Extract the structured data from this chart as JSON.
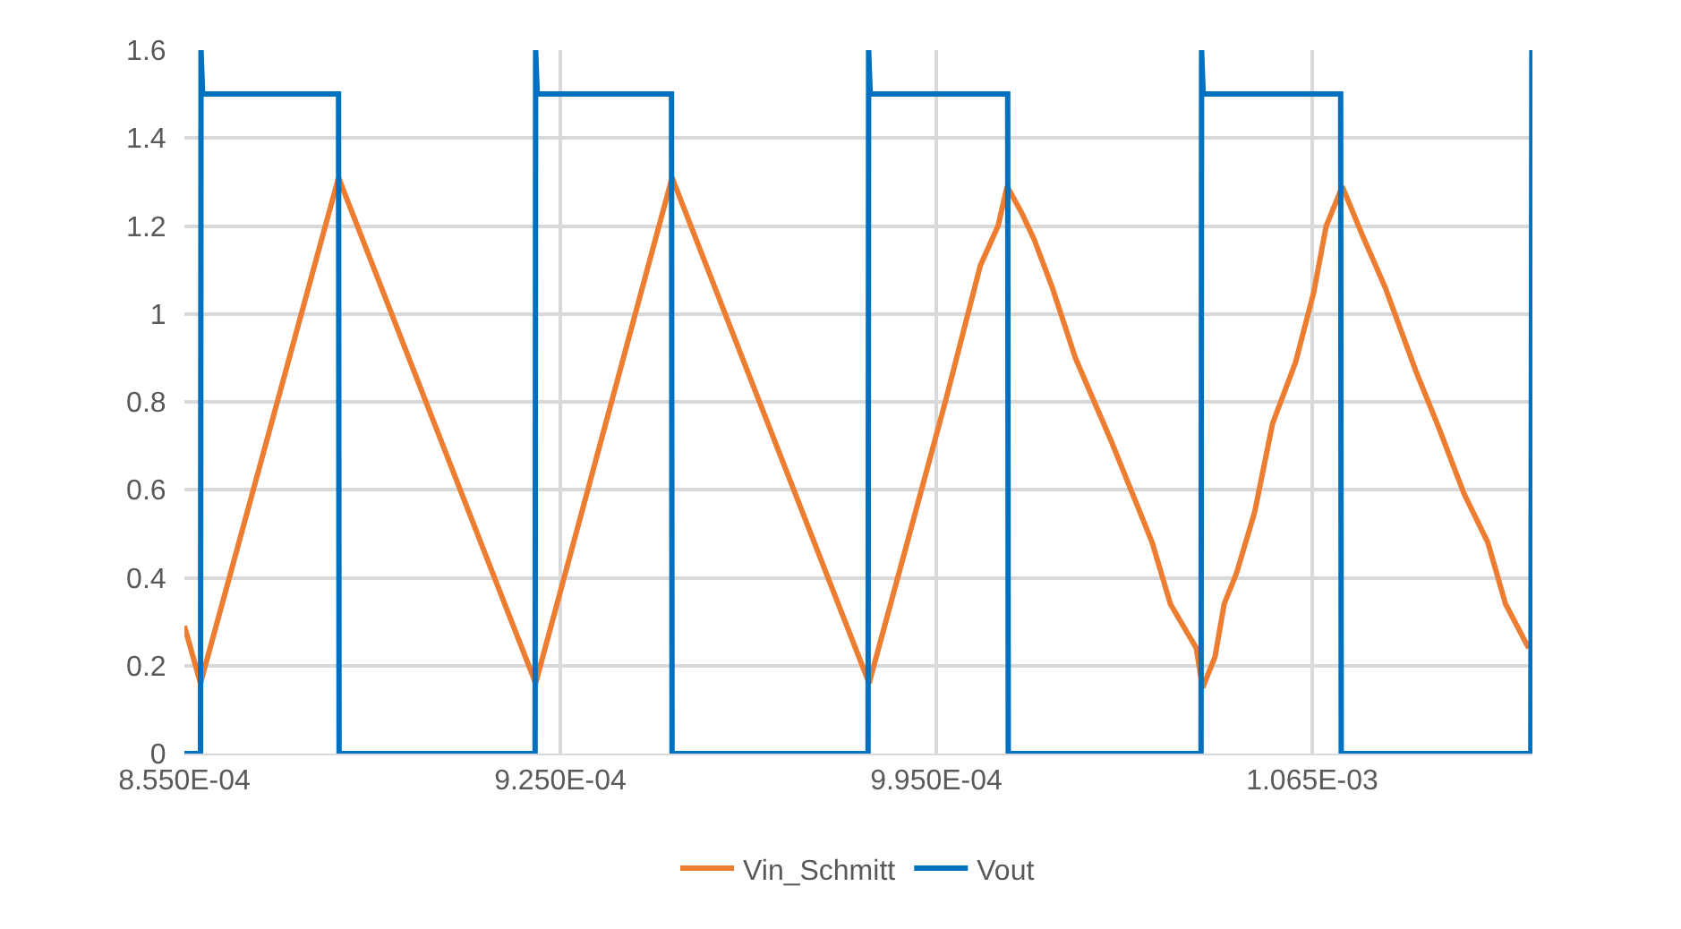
{
  "chart_data": {
    "type": "line",
    "grid": true,
    "legend": "bottom",
    "marker": "none",
    "line_style": "solid",
    "xlim": [
      0.000855,
      0.001106
    ],
    "ylim": [
      0,
      1.6
    ],
    "xticks": [
      {
        "value": 0.000855,
        "label": "8.550E-04"
      },
      {
        "value": 0.000925,
        "label": "9.250E-04"
      },
      {
        "value": 0.000995,
        "label": "9.950E-04"
      },
      {
        "value": 0.001065,
        "label": "1.065E-03"
      }
    ],
    "yticks": [
      0,
      0.2,
      0.4,
      0.6,
      0.8,
      1,
      1.2,
      1.4,
      1.6
    ],
    "series": [
      {
        "name": "Vin_Schmitt",
        "color": "#ed7d31",
        "x": [
          0.000855,
          0.000858,
          0.0008837,
          0.0009204,
          0.0009458,
          0.0009825,
          0.0009969,
          0.0010032,
          0.0010065,
          0.0010082,
          0.0010109,
          0.0010132,
          0.0010166,
          0.0010209,
          0.0010276,
          0.0010352,
          0.0010386,
          0.0010434,
          0.0010446,
          0.0010469,
          0.0010486,
          0.0010509,
          0.0010543,
          0.0010576,
          0.0010619,
          0.0010653,
          0.0010676,
          0.0010706,
          0.0010743,
          0.0010786,
          0.0010843,
          0.0010886,
          0.0010933,
          0.0010977,
          0.001101,
          0.0011053
        ],
        "values": [
          0.29,
          0.16,
          1.31,
          0.16,
          1.31,
          0.16,
          0.81,
          1.11,
          1.2,
          1.29,
          1.23,
          1.17,
          1.06,
          0.9,
          0.71,
          0.48,
          0.34,
          0.24,
          0.15,
          0.22,
          0.34,
          0.41,
          0.55,
          0.75,
          0.89,
          1.05,
          1.2,
          1.29,
          1.18,
          1.06,
          0.87,
          0.74,
          0.59,
          0.48,
          0.34,
          0.24
        ]
      },
      {
        "name": "Vout",
        "color": "#0070c0",
        "x": [
          0.000855,
          0.000858,
          0.0008581,
          0.0008584,
          0.0008837,
          0.0008838,
          0.0009203,
          0.0009204,
          0.0009207,
          0.0009457,
          0.0009458,
          0.0009823,
          0.0009824,
          0.0009827,
          0.0010083,
          0.0010084,
          0.0010443,
          0.0010444,
          0.0010447,
          0.0010703,
          0.0010704,
          0.0011057,
          0.0011059
        ],
        "values": [
          0,
          0,
          1.6,
          1.5,
          1.5,
          0,
          0,
          1.6,
          1.5,
          1.5,
          0,
          0,
          1.6,
          1.5,
          1.5,
          0,
          0,
          1.6,
          1.5,
          1.5,
          0,
          0,
          1.6
        ]
      }
    ]
  }
}
